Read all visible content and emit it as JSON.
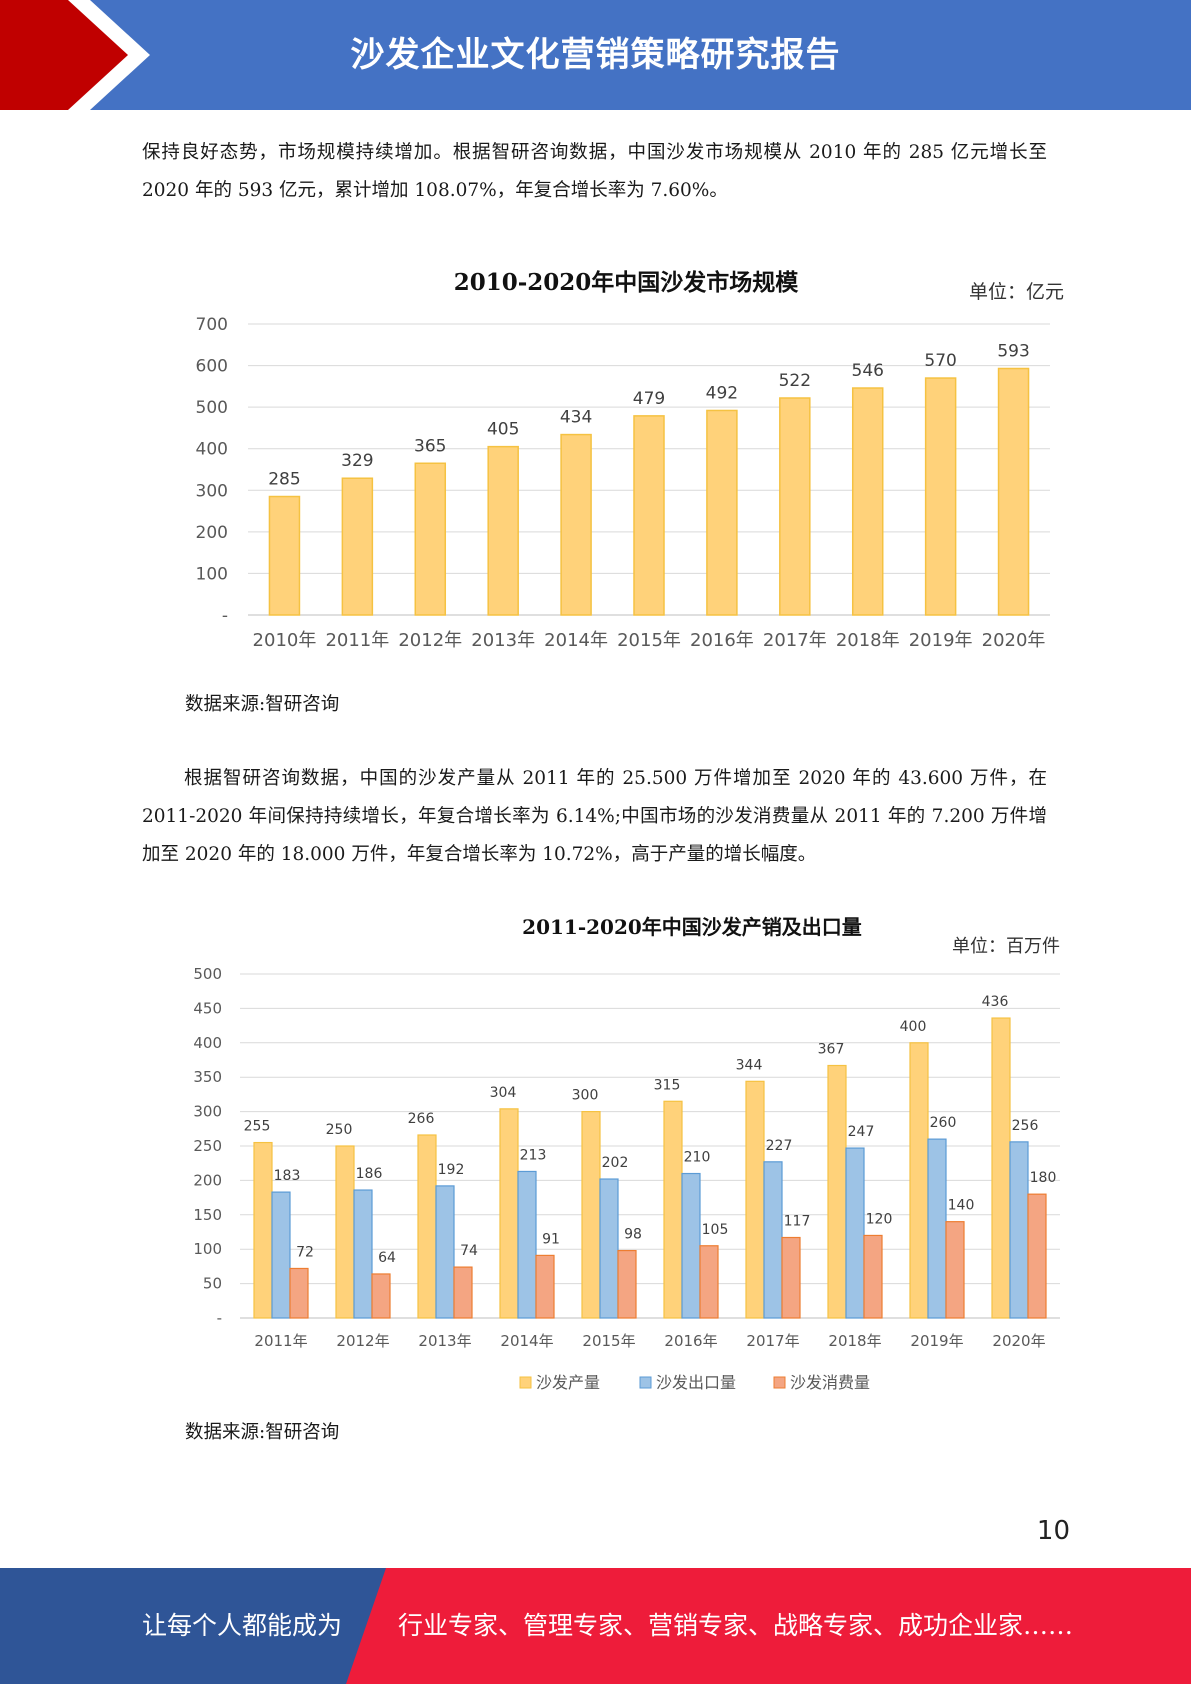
{
  "header": {
    "title": "沙发企业文化营销策略研究报告"
  },
  "paragraphs": {
    "p1": "保持良好态势，市场规模持续增加。根据智研咨询数据，中国沙发市场规模从 2010 年的 285 亿元增长至 2020 年的 593 亿元，累计增加 108.07%，年复合增长率为 7.60%。",
    "p2": "根据智研咨询数据，中国的沙发产量从 2011 年的 25.500 万件增加至 2020 年的 43.600 万件，在 2011-2020 年间保持持续增长，年复合增长率为 6.14%;中国市场的沙发消费量从 2011 年的 7.200 万件增加至 2020 年的 18.000 万件，年复合增长率为 10.72%，高于产量的增长幅度。"
  },
  "sources": {
    "s1": "数据来源:智研咨询",
    "s2": "数据来源:智研咨询"
  },
  "page_number": "10",
  "footer": {
    "slogan": "让每个人都能成为",
    "list": "行业专家、管理专家、营销专家、战略专家、成功企业家……"
  },
  "colors": {
    "header_blue": "#4472c4",
    "header_red": "#c00000",
    "footer_blue": "#2f5597",
    "footer_red": "#ee1c3a",
    "bar_yellow": "#ffd27a",
    "bar_yellow_border": "#f5c242",
    "bar_blue": "#9dc3e6",
    "bar_blue_border": "#5b9bd5",
    "bar_orange": "#f4a582",
    "bar_orange_border": "#ed7d31"
  },
  "chart_data": [
    {
      "type": "bar",
      "title": "2010-2020年中国沙发市场规模",
      "unit": "单位：亿元",
      "categories": [
        "2010年",
        "2011年",
        "2012年",
        "2013年",
        "2014年",
        "2015年",
        "2016年",
        "2017年",
        "2018年",
        "2019年",
        "2020年"
      ],
      "values": [
        285,
        329,
        365,
        405,
        434,
        479,
        492,
        522,
        546,
        570,
        593
      ],
      "ylim": [
        0,
        700
      ],
      "yticks": [
        "-",
        "100",
        "200",
        "300",
        "400",
        "500",
        "600",
        "700"
      ],
      "grid": true
    },
    {
      "type": "bar",
      "title": "2011-2020年中国沙发产销及出口量",
      "unit": "单位：百万件",
      "categories": [
        "2011年",
        "2012年",
        "2013年",
        "2014年",
        "2015年",
        "2016年",
        "2017年",
        "2018年",
        "2019年",
        "2020年"
      ],
      "series": [
        {
          "name": "沙发产量",
          "values": [
            255,
            250,
            266,
            304,
            300,
            315,
            344,
            367,
            400,
            436
          ]
        },
        {
          "name": "沙发出口量",
          "values": [
            183,
            186,
            192,
            213,
            202,
            210,
            227,
            247,
            260,
            256
          ]
        },
        {
          "name": "沙发消费量",
          "values": [
            72,
            64,
            74,
            91,
            98,
            105,
            117,
            120,
            140,
            180
          ]
        }
      ],
      "ylim": [
        0,
        500
      ],
      "yticks": [
        "-",
        "50",
        "100",
        "150",
        "200",
        "250",
        "300",
        "350",
        "400",
        "450",
        "500"
      ],
      "legend": "bottom",
      "grid": true
    }
  ]
}
